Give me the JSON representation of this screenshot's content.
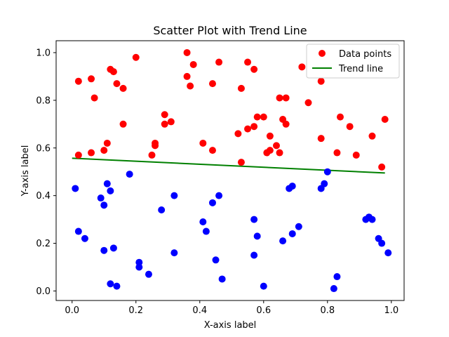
{
  "chart_data": {
    "type": "scatter",
    "title": "Scatter Plot with Trend Line",
    "xlabel": "X-axis label",
    "ylabel": "Y-axis label",
    "xlim": [
      -0.05,
      1.04
    ],
    "ylim": [
      -0.04,
      1.05
    ],
    "xticks": [
      0.0,
      0.2,
      0.4,
      0.6,
      0.8,
      1.0
    ],
    "xtick_labels": [
      "0.0",
      "0.2",
      "0.4",
      "0.6",
      "0.8",
      "1.0"
    ],
    "yticks": [
      0.0,
      0.2,
      0.4,
      0.6,
      0.8,
      1.0
    ],
    "ytick_labels": [
      "0.0",
      "0.2",
      "0.4",
      "0.6",
      "0.8",
      "1.0"
    ],
    "grid": false,
    "legend": {
      "placement": "top-right",
      "entries": [
        {
          "label": "Data points",
          "kind": "marker",
          "color": "#ff0000"
        },
        {
          "label": "Trend line",
          "kind": "line",
          "color": "#008000"
        }
      ]
    },
    "series": [
      {
        "name": "Data points",
        "style": "scatter",
        "color_above_0.5": "#ff0000",
        "color_below_0.5": "#0000ff",
        "points": [
          [
            0.02,
            0.88
          ],
          [
            0.02,
            0.57
          ],
          [
            0.06,
            0.89
          ],
          [
            0.07,
            0.81
          ],
          [
            0.06,
            0.58
          ],
          [
            0.1,
            0.59
          ],
          [
            0.11,
            0.62
          ],
          [
            0.12,
            0.93
          ],
          [
            0.13,
            0.92
          ],
          [
            0.14,
            0.87
          ],
          [
            0.16,
            0.85
          ],
          [
            0.16,
            0.7
          ],
          [
            0.2,
            0.98
          ],
          [
            0.25,
            0.57
          ],
          [
            0.26,
            0.62
          ],
          [
            0.26,
            0.61
          ],
          [
            0.29,
            0.74
          ],
          [
            0.29,
            0.7
          ],
          [
            0.31,
            0.71
          ],
          [
            0.36,
            0.9
          ],
          [
            0.36,
            1.0
          ],
          [
            0.37,
            0.86
          ],
          [
            0.38,
            0.95
          ],
          [
            0.41,
            0.62
          ],
          [
            0.44,
            0.87
          ],
          [
            0.44,
            0.59
          ],
          [
            0.46,
            0.96
          ],
          [
            0.52,
            0.66
          ],
          [
            0.53,
            0.85
          ],
          [
            0.53,
            0.54
          ],
          [
            0.55,
            0.96
          ],
          [
            0.55,
            0.68
          ],
          [
            0.57,
            0.93
          ],
          [
            0.57,
            0.69
          ],
          [
            0.58,
            0.73
          ],
          [
            0.6,
            0.73
          ],
          [
            0.61,
            0.58
          ],
          [
            0.62,
            0.59
          ],
          [
            0.62,
            0.65
          ],
          [
            0.64,
            0.61
          ],
          [
            0.65,
            0.58
          ],
          [
            0.65,
            0.81
          ],
          [
            0.66,
            0.72
          ],
          [
            0.67,
            0.81
          ],
          [
            0.67,
            0.7
          ],
          [
            0.72,
            0.94
          ],
          [
            0.74,
            0.79
          ],
          [
            0.78,
            0.88
          ],
          [
            0.78,
            0.64
          ],
          [
            0.8,
            0.5
          ],
          [
            0.83,
            0.58
          ],
          [
            0.84,
            0.73
          ],
          [
            0.87,
            0.69
          ],
          [
            0.89,
            0.57
          ],
          [
            0.94,
            0.65
          ],
          [
            0.97,
            0.52
          ],
          [
            0.98,
            0.72
          ],
          [
            0.01,
            0.43
          ],
          [
            0.02,
            0.25
          ],
          [
            0.04,
            0.22
          ],
          [
            0.09,
            0.39
          ],
          [
            0.1,
            0.36
          ],
          [
            0.1,
            0.17
          ],
          [
            0.11,
            0.45
          ],
          [
            0.12,
            0.42
          ],
          [
            0.12,
            0.03
          ],
          [
            0.13,
            0.18
          ],
          [
            0.14,
            0.02
          ],
          [
            0.18,
            0.49
          ],
          [
            0.21,
            0.12
          ],
          [
            0.21,
            0.1
          ],
          [
            0.24,
            0.07
          ],
          [
            0.28,
            0.34
          ],
          [
            0.32,
            0.4
          ],
          [
            0.32,
            0.16
          ],
          [
            0.41,
            0.29
          ],
          [
            0.42,
            0.25
          ],
          [
            0.44,
            0.37
          ],
          [
            0.45,
            0.13
          ],
          [
            0.46,
            0.4
          ],
          [
            0.47,
            0.05
          ],
          [
            0.57,
            0.3
          ],
          [
            0.57,
            0.15
          ],
          [
            0.58,
            0.23
          ],
          [
            0.6,
            0.02
          ],
          [
            0.66,
            0.21
          ],
          [
            0.68,
            0.43
          ],
          [
            0.69,
            0.44
          ],
          [
            0.69,
            0.24
          ],
          [
            0.71,
            0.27
          ],
          [
            0.78,
            0.43
          ],
          [
            0.79,
            0.45
          ],
          [
            0.82,
            0.01
          ],
          [
            0.83,
            0.06
          ],
          [
            0.92,
            0.3
          ],
          [
            0.93,
            0.31
          ],
          [
            0.94,
            0.3
          ],
          [
            0.96,
            0.22
          ],
          [
            0.97,
            0.2
          ],
          [
            0.99,
            0.16
          ]
        ]
      },
      {
        "name": "Trend line",
        "style": "line",
        "color": "#008000",
        "x": [
          0.0,
          0.98
        ],
        "y": [
          0.557,
          0.495
        ]
      }
    ]
  }
}
